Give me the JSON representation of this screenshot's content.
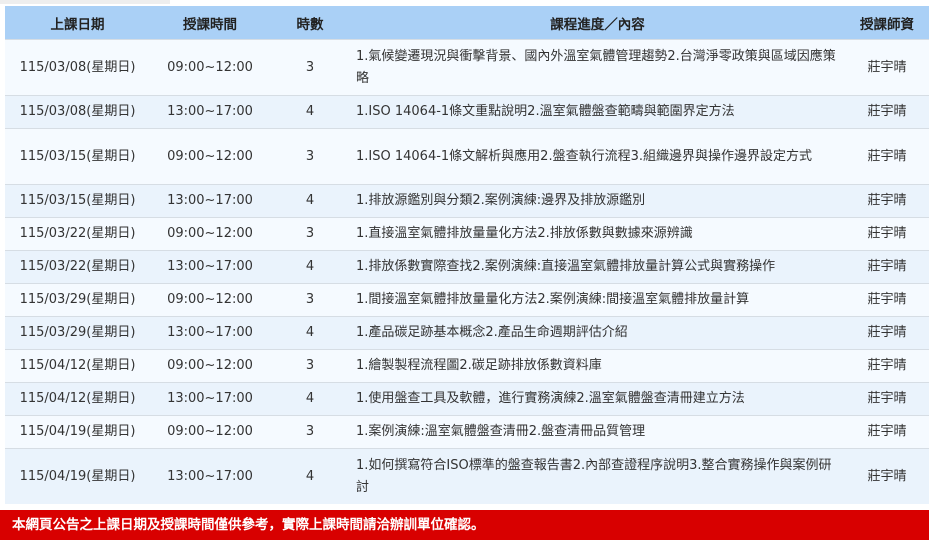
{
  "headers": [
    "上課日期",
    "授課時間",
    "時數",
    "課程進度／內容",
    "授課師資"
  ],
  "rows": [
    {
      "date": "115/03/08(星期日)",
      "time": "09:00~12:00",
      "hours": "3",
      "content": "1.氣候變遷現況與衝擊背景、國內外溫室氣體管理趨勢2.台灣淨零政策與區域因應策略",
      "teacher": "莊宇晴"
    },
    {
      "date": "115/03/08(星期日)",
      "time": "13:00~17:00",
      "hours": "4",
      "content": "1.ISO 14064-1條文重點說明2.溫室氣體盤查範疇與範圍界定方法",
      "teacher": "莊宇晴"
    },
    {
      "date": "115/03/15(星期日)",
      "time": "09:00~12:00",
      "hours": "3",
      "content": "1.ISO 14064-1條文解析與應用2.盤查執行流程3.組織邊界與操作邊界設定方式",
      "teacher": "莊宇晴"
    },
    {
      "date": "115/03/15(星期日)",
      "time": "13:00~17:00",
      "hours": "4",
      "content": "1.排放源鑑別與分類2.案例演練:邊界及排放源鑑別",
      "teacher": "莊宇晴"
    },
    {
      "date": "115/03/22(星期日)",
      "time": "09:00~12:00",
      "hours": "3",
      "content": "1.直接溫室氣體排放量量化方法2.排放係數與數據來源辨識",
      "teacher": "莊宇晴"
    },
    {
      "date": "115/03/22(星期日)",
      "time": "13:00~17:00",
      "hours": "4",
      "content": "1.排放係數實際查找2.案例演練:直接溫室氣體排放量計算公式與實務操作",
      "teacher": "莊宇晴"
    },
    {
      "date": "115/03/29(星期日)",
      "time": "09:00~12:00",
      "hours": "3",
      "content": "1.間接溫室氣體排放量量化方法2.案例演練:間接溫室氣體排放量計算",
      "teacher": "莊宇晴"
    },
    {
      "date": "115/03/29(星期日)",
      "time": "13:00~17:00",
      "hours": "4",
      "content": "1.產品碳足跡基本概念2.產品生命週期評估介紹",
      "teacher": "莊宇晴"
    },
    {
      "date": "115/04/12(星期日)",
      "time": "09:00~12:00",
      "hours": "3",
      "content": "1.繪製製程流程圖2.碳足跡排放係數資料庫",
      "teacher": "莊宇晴"
    },
    {
      "date": "115/04/12(星期日)",
      "time": "13:00~17:00",
      "hours": "4",
      "content": "1.使用盤查工具及軟體，進行實務演練2.溫室氣體盤查清冊建立方法",
      "teacher": "莊宇晴"
    },
    {
      "date": "115/04/19(星期日)",
      "time": "09:00~12:00",
      "hours": "3",
      "content": "1.案例演練:溫室氣體盤查清冊2.盤查清冊品質管理",
      "teacher": "莊宇晴"
    },
    {
      "date": "115/04/19(星期日)",
      "time": "13:00~17:00",
      "hours": "4",
      "content": "1.如何撰寫符合ISO標準的盤查報告書2.內部查證程序說明3.整合實務操作與案例研討",
      "teacher": "莊宇晴"
    }
  ],
  "notice": "本網頁公告之上課日期及授課時間僅供參考，實際上課時間請洽辦訓單位確認。",
  "colors": {
    "header_bg": "#aad0f6",
    "row_odd": "#f5faff",
    "row_even": "#eaf3fc",
    "notice_bg": "#d80000"
  }
}
